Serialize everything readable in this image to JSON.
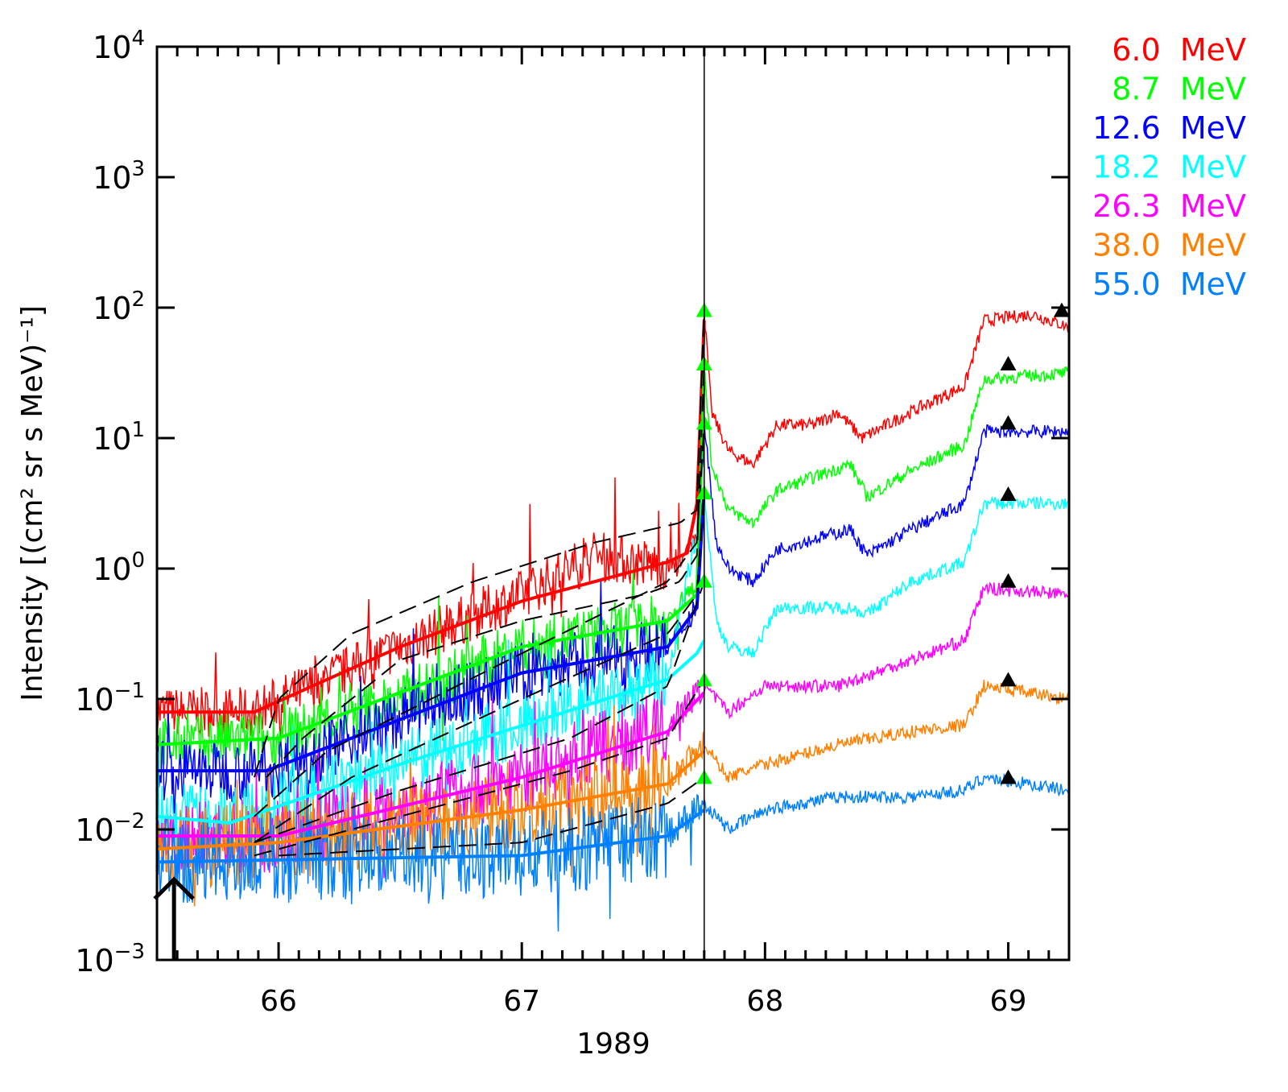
{
  "chart_data": {
    "type": "line",
    "title": "",
    "xlabel": "1989",
    "ylabel": "Intensity [(cm² sr s MeV)⁻¹]",
    "xlim": [
      65.5,
      69.25
    ],
    "ylim_log10": [
      -3,
      4
    ],
    "xticks": [
      {
        "v": 66,
        "label": "66"
      },
      {
        "v": 67,
        "label": "67"
      },
      {
        "v": 68,
        "label": "68"
      },
      {
        "v": 69,
        "label": "69"
      }
    ],
    "yticks": [
      {
        "exp": 4,
        "base": "10",
        "sup": "4"
      },
      {
        "exp": 3,
        "base": "10",
        "sup": "3"
      },
      {
        "exp": 2,
        "base": "10",
        "sup": "2"
      },
      {
        "exp": 1,
        "base": "10",
        "sup": "1"
      },
      {
        "exp": 0,
        "base": "10",
        "sup": "0"
      },
      {
        "exp": -1,
        "base": "10",
        "sup": "−1"
      },
      {
        "exp": -2,
        "base": "10",
        "sup": "−2"
      },
      {
        "exp": -3,
        "base": "10",
        "sup": "−3"
      }
    ],
    "vline_x": 67.75,
    "arrow_x": 65.57,
    "legend_position": "right-top",
    "series": [
      {
        "name": "6.0 MeV",
        "color": "#ff0000",
        "peak": 95,
        "plateau": 95,
        "plateau_x": 69.22,
        "profile": [
          [
            65.5,
            -1.1
          ],
          [
            65.9,
            -1.1
          ],
          [
            66.5,
            -0.6
          ],
          [
            67.0,
            -0.2
          ],
          [
            67.3,
            0.1
          ],
          [
            67.65,
            0.0
          ],
          [
            67.72,
            0.3
          ],
          [
            67.75,
            1.98
          ],
          [
            67.78,
            1.2
          ],
          [
            67.85,
            0.9
          ],
          [
            67.95,
            0.8
          ],
          [
            68.05,
            1.1
          ],
          [
            68.2,
            1.1
          ],
          [
            68.3,
            1.2
          ],
          [
            68.4,
            1.0
          ],
          [
            68.6,
            1.2
          ],
          [
            68.82,
            1.4
          ],
          [
            68.9,
            1.9
          ],
          [
            69.1,
            1.95
          ],
          [
            69.25,
            1.85
          ]
        ],
        "fit": [
          [
            65.5,
            -1.1
          ],
          [
            65.9,
            -1.1
          ],
          [
            66.5,
            -0.6
          ],
          [
            67.0,
            -0.25
          ],
          [
            67.6,
            0.05
          ],
          [
            67.68,
            0.12
          ],
          [
            67.72,
            0.5
          ],
          [
            67.75,
            1.9
          ]
        ]
      },
      {
        "name": "8.7 MeV",
        "color": "#00ff00",
        "peak": 37,
        "plateau": 37,
        "plateau_x": 69.0,
        "profile": [
          [
            65.5,
            -1.35
          ],
          [
            66.0,
            -1.3
          ],
          [
            66.5,
            -1.0
          ],
          [
            67.0,
            -0.6
          ],
          [
            67.6,
            -0.4
          ],
          [
            67.72,
            -0.1
          ],
          [
            67.75,
            1.57
          ],
          [
            67.78,
            0.8
          ],
          [
            67.85,
            0.45
          ],
          [
            67.95,
            0.35
          ],
          [
            68.05,
            0.6
          ],
          [
            68.35,
            0.8
          ],
          [
            68.42,
            0.55
          ],
          [
            68.6,
            0.75
          ],
          [
            68.82,
            0.95
          ],
          [
            68.9,
            1.45
          ],
          [
            69.25,
            1.5
          ]
        ],
        "fit": [
          [
            65.5,
            -1.35
          ],
          [
            66.0,
            -1.3
          ],
          [
            67.0,
            -0.6
          ],
          [
            67.6,
            -0.4
          ],
          [
            67.72,
            -0.2
          ],
          [
            67.75,
            1.5
          ]
        ]
      },
      {
        "name": "12.6 MeV",
        "color": "#0000ff",
        "peak": 13,
        "plateau": 13,
        "plateau_x": 69.0,
        "profile": [
          [
            65.5,
            -1.55
          ],
          [
            65.95,
            -1.55
          ],
          [
            67.0,
            -0.8
          ],
          [
            67.6,
            -0.6
          ],
          [
            67.72,
            -0.3
          ],
          [
            67.75,
            1.12
          ],
          [
            67.8,
            0.2
          ],
          [
            67.85,
            0.0
          ],
          [
            67.95,
            -0.1
          ],
          [
            68.05,
            0.15
          ],
          [
            68.35,
            0.3
          ],
          [
            68.42,
            0.1
          ],
          [
            68.6,
            0.3
          ],
          [
            68.82,
            0.5
          ],
          [
            68.9,
            1.05
          ],
          [
            69.25,
            1.05
          ]
        ],
        "fit": [
          [
            65.5,
            -1.55
          ],
          [
            65.95,
            -1.55
          ],
          [
            67.0,
            -0.8
          ],
          [
            67.6,
            -0.6
          ],
          [
            67.72,
            -0.3
          ],
          [
            67.75,
            0.6
          ]
        ]
      },
      {
        "name": "18.2 MeV",
        "color": "#00ffff",
        "peak": 3.8,
        "plateau": 3.7,
        "plateau_x": 69.0,
        "profile": [
          [
            65.5,
            -1.9
          ],
          [
            65.8,
            -1.95
          ],
          [
            66.5,
            -1.5
          ],
          [
            67.6,
            -0.85
          ],
          [
            67.75,
            0.58
          ],
          [
            67.8,
            -0.4
          ],
          [
            67.85,
            -0.6
          ],
          [
            67.95,
            -0.65
          ],
          [
            68.05,
            -0.3
          ],
          [
            68.35,
            -0.3
          ],
          [
            68.42,
            -0.35
          ],
          [
            68.6,
            -0.1
          ],
          [
            68.82,
            0.05
          ],
          [
            68.9,
            0.5
          ],
          [
            69.25,
            0.5
          ]
        ],
        "fit": [
          [
            65.5,
            -1.9
          ],
          [
            65.8,
            -1.95
          ],
          [
            66.5,
            -1.5
          ],
          [
            67.6,
            -0.85
          ],
          [
            67.72,
            -0.65
          ],
          [
            67.75,
            -0.55
          ]
        ]
      },
      {
        "name": "26.3 MeV",
        "color": "#ff00ff",
        "peak": 0.8,
        "plateau": 0.8,
        "plateau_x": 69.0,
        "profile": [
          [
            65.5,
            -2.05
          ],
          [
            66.0,
            -2.05
          ],
          [
            67.0,
            -1.6
          ],
          [
            67.6,
            -1.2
          ],
          [
            67.75,
            -0.9
          ],
          [
            67.85,
            -1.1
          ],
          [
            68.0,
            -0.9
          ],
          [
            68.3,
            -0.9
          ],
          [
            68.6,
            -0.7
          ],
          [
            68.82,
            -0.55
          ],
          [
            68.9,
            -0.15
          ],
          [
            69.25,
            -0.2
          ]
        ],
        "fit": [
          [
            65.5,
            -2.05
          ],
          [
            66.0,
            -2.05
          ],
          [
            67.0,
            -1.6
          ],
          [
            67.6,
            -1.25
          ],
          [
            67.75,
            -0.95
          ]
        ]
      },
      {
        "name": "38.0 MeV",
        "color": "#ff8000",
        "peak": 0.14,
        "plateau": 0.14,
        "plateau_x": 69.0,
        "profile": [
          [
            65.5,
            -2.15
          ],
          [
            66.0,
            -2.1
          ],
          [
            67.0,
            -1.85
          ],
          [
            67.6,
            -1.65
          ],
          [
            67.75,
            -1.35
          ],
          [
            67.85,
            -1.6
          ],
          [
            68.0,
            -1.5
          ],
          [
            68.3,
            -1.35
          ],
          [
            68.6,
            -1.25
          ],
          [
            68.82,
            -1.2
          ],
          [
            68.9,
            -0.9
          ],
          [
            69.25,
            -1.0
          ]
        ],
        "fit": [
          [
            65.5,
            -2.15
          ],
          [
            66.0,
            -2.1
          ],
          [
            67.0,
            -1.85
          ],
          [
            67.6,
            -1.65
          ],
          [
            67.75,
            -1.4
          ]
        ]
      },
      {
        "name": "55.0 MeV",
        "color": "#0080ff",
        "peak": 0.025,
        "plateau": 0.025,
        "plateau_x": 69.0,
        "profile": [
          [
            65.5,
            -2.25
          ],
          [
            67.0,
            -2.2
          ],
          [
            67.6,
            -2.05
          ],
          [
            67.75,
            -1.8
          ],
          [
            67.85,
            -2.0
          ],
          [
            68.0,
            -1.85
          ],
          [
            68.3,
            -1.75
          ],
          [
            68.6,
            -1.75
          ],
          [
            68.82,
            -1.7
          ],
          [
            68.9,
            -1.6
          ],
          [
            69.25,
            -1.7
          ]
        ],
        "fit": [
          [
            65.5,
            -2.25
          ],
          [
            67.0,
            -2.2
          ],
          [
            67.6,
            -2.05
          ],
          [
            67.75,
            -1.85
          ]
        ]
      }
    ],
    "model_curves": [
      [
        [
          65.9,
          -1.6
        ],
        [
          66.0,
          -1.0
        ],
        [
          66.3,
          -0.5
        ],
        [
          66.8,
          -0.1
        ],
        [
          67.3,
          0.2
        ],
        [
          67.65,
          0.35
        ],
        [
          67.72,
          0.45
        ],
        [
          67.75,
          2.0
        ]
      ],
      [
        [
          65.95,
          -1.6
        ],
        [
          66.1,
          -1.3
        ],
        [
          66.5,
          -0.7
        ],
        [
          67.0,
          -0.4
        ],
        [
          67.5,
          -0.2
        ],
        [
          67.65,
          -0.1
        ],
        [
          67.72,
          0.1
        ],
        [
          67.75,
          1.57
        ]
      ],
      [
        [
          65.9,
          -1.9
        ],
        [
          66.2,
          -1.4
        ],
        [
          67.0,
          -0.65
        ],
        [
          67.6,
          -0.1
        ],
        [
          67.72,
          0.2
        ],
        [
          67.75,
          1.1
        ]
      ],
      [
        [
          65.9,
          -2.1
        ],
        [
          66.3,
          -1.6
        ],
        [
          67.0,
          -1.0
        ],
        [
          67.6,
          -0.5
        ],
        [
          67.72,
          -0.2
        ],
        [
          67.75,
          0.6
        ]
      ],
      [
        [
          65.9,
          -2.1
        ],
        [
          66.5,
          -1.7
        ],
        [
          67.2,
          -1.3
        ],
        [
          67.6,
          -0.9
        ],
        [
          67.75,
          -0.1
        ]
      ],
      [
        [
          65.9,
          -2.2
        ],
        [
          66.5,
          -1.9
        ],
        [
          67.2,
          -1.55
        ],
        [
          67.6,
          -1.3
        ],
        [
          67.75,
          -0.85
        ]
      ],
      [
        [
          66.0,
          -2.2
        ],
        [
          67.0,
          -2.1
        ],
        [
          67.6,
          -1.8
        ],
        [
          67.75,
          -1.6
        ]
      ]
    ]
  }
}
